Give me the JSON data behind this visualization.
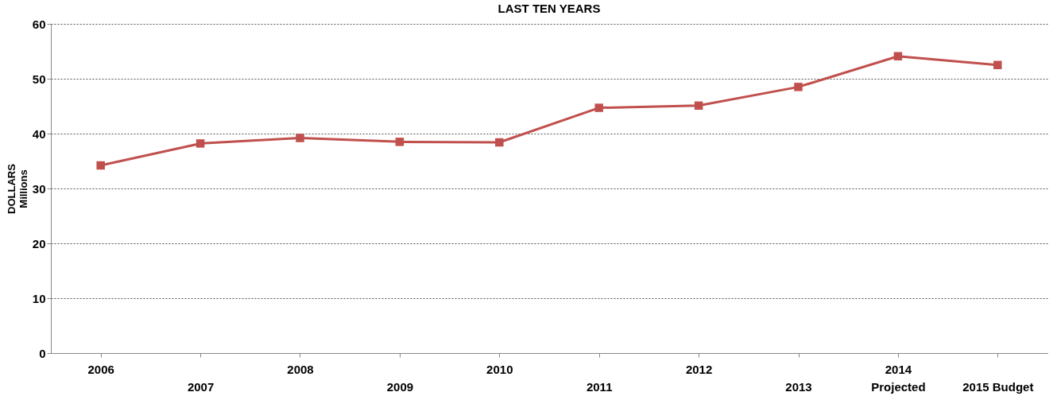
{
  "chart_data": {
    "type": "line",
    "title": "LAST TEN YEARS",
    "ylabel": "DOLLARS\nMillions",
    "categories": [
      "2006",
      "2007",
      "2008",
      "2009",
      "2010",
      "2011",
      "2012",
      "2013",
      "2014\nProjected",
      "2015 Budget"
    ],
    "series": [
      {
        "color": "#c0504d",
        "values": [
          34.2,
          38.2,
          39.2,
          38.5,
          38.4,
          44.7,
          45.1,
          48.5,
          54.1,
          52.5
        ]
      }
    ],
    "ylim": [
      0,
      60
    ],
    "yticks": [
      0,
      10,
      20,
      30,
      40,
      50,
      60
    ],
    "grid": "y",
    "marker": "square",
    "line_style": "solid",
    "legend": false
  }
}
